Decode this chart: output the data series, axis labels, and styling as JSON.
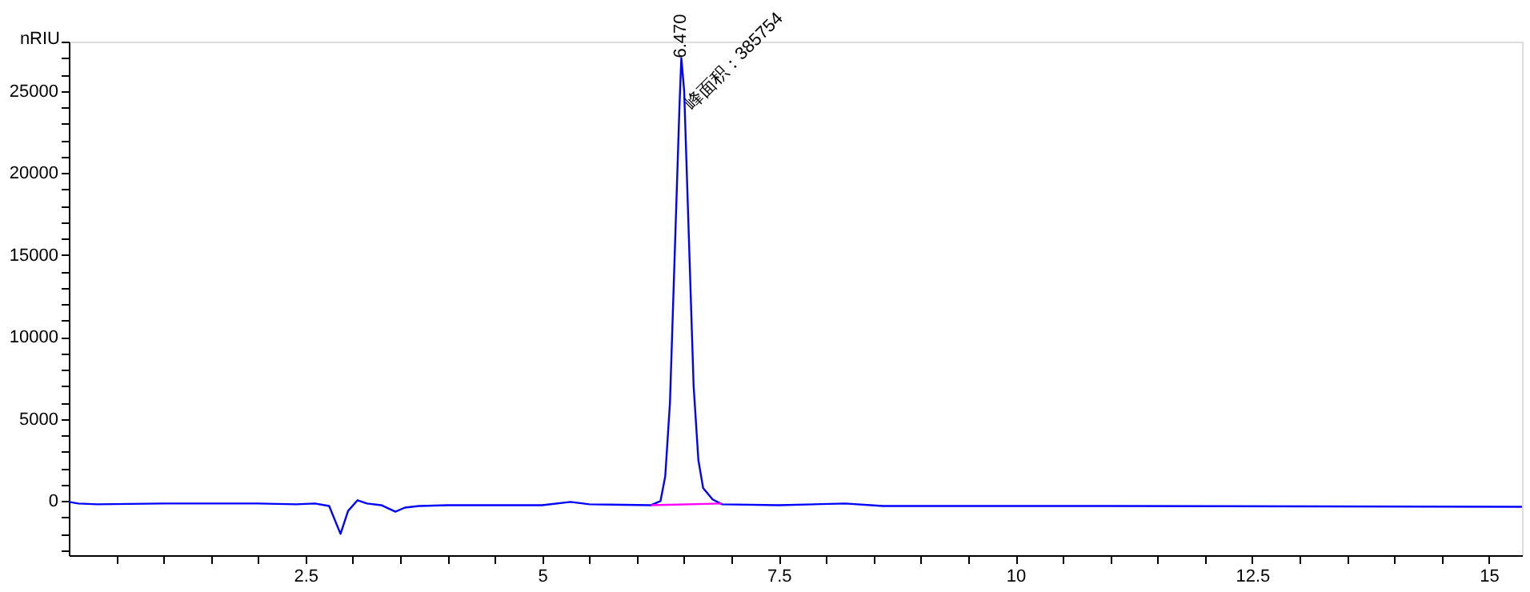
{
  "chart_data": {
    "type": "line",
    "ylabel": "nRIU",
    "series": [
      {
        "color": "#0000ff",
        "x": [
          0,
          0.1,
          0.3,
          1,
          2,
          2.4,
          2.6,
          2.75,
          2.87,
          2.95,
          3.05,
          3.15,
          3.3,
          3.45,
          3.55,
          3.7,
          4,
          5,
          5.3,
          5.5,
          6.15,
          6.25,
          6.3,
          6.35,
          6.4,
          6.45,
          6.47,
          6.5,
          6.55,
          6.6,
          6.65,
          6.7,
          6.8,
          6.9,
          7.5,
          8.2,
          8.6,
          11,
          15.35
        ],
        "values": [
          -50,
          -150,
          -200,
          -150,
          -150,
          -200,
          -150,
          -300,
          -2000,
          -600,
          50,
          -150,
          -250,
          -650,
          -400,
          -300,
          -250,
          -250,
          -50,
          -200,
          -250,
          0,
          1500,
          6000,
          15000,
          24000,
          27000,
          25000,
          16000,
          7000,
          2500,
          800,
          100,
          -200,
          -250,
          -150,
          -300,
          -300,
          -350
        ]
      },
      {
        "color": "#ff00ff",
        "x": [
          6.15,
          6.9
        ],
        "values": [
          -250,
          -150
        ]
      }
    ],
    "annotations": [
      {
        "text": "6.470",
        "x": 6.47,
        "y": 27000
      },
      {
        "text": "峰面积：385754",
        "x": 6.55,
        "y": 24000
      }
    ],
    "xlim": [
      0,
      15.35
    ],
    "ylim": [
      -3300,
      28000
    ],
    "xticks": [
      {
        "value": 0.5,
        "label": null
      },
      {
        "value": 1,
        "label": null
      },
      {
        "value": 1.5,
        "label": null
      },
      {
        "value": 2,
        "label": null
      },
      2.5,
      {
        "value": 3,
        "label": null
      },
      {
        "value": 3.5,
        "label": null
      },
      {
        "value": 4,
        "label": null
      },
      {
        "value": 4.5,
        "label": null
      },
      5,
      {
        "value": 5.5,
        "label": null
      },
      {
        "value": 6,
        "label": null
      },
      {
        "value": 6.5,
        "label": null
      },
      {
        "value": 7,
        "label": null
      },
      7.5,
      {
        "value": 8,
        "label": null
      },
      {
        "value": 8.5,
        "label": null
      },
      {
        "value": 9,
        "label": null
      },
      {
        "value": 9.5,
        "label": null
      },
      10,
      {
        "value": 10.5,
        "label": null
      },
      {
        "value": 11,
        "label": null
      },
      {
        "value": 11.5,
        "label": null
      },
      {
        "value": 12,
        "label": null
      },
      12.5,
      {
        "value": 13,
        "label": null
      },
      {
        "value": 13.5,
        "label": null
      },
      {
        "value": 14,
        "label": null
      },
      {
        "value": 14.5,
        "label": null
      },
      15
    ],
    "yticks": [
      {
        "value": -3000,
        "label": null
      },
      {
        "value": -2000,
        "label": null
      },
      {
        "value": -1000,
        "label": null
      },
      0,
      {
        "value": 1000,
        "label": null
      },
      {
        "value": 2000,
        "label": null
      },
      {
        "value": 3000,
        "label": null
      },
      {
        "value": 4000,
        "label": null
      },
      5000,
      {
        "value": 6000,
        "label": null
      },
      {
        "value": 7000,
        "label": null
      },
      {
        "value": 8000,
        "label": null
      },
      {
        "value": 9000,
        "label": null
      },
      10000,
      {
        "value": 11000,
        "label": null
      },
      {
        "value": 12000,
        "label": null
      },
      {
        "value": 13000,
        "label": null
      },
      {
        "value": 14000,
        "label": null
      },
      15000,
      {
        "value": 16000,
        "label": null
      },
      {
        "value": 17000,
        "label": null
      },
      {
        "value": 18000,
        "label": null
      },
      {
        "value": 19000,
        "label": null
      },
      20000,
      {
        "value": 21000,
        "label": null
      },
      {
        "value": 22000,
        "label": null
      },
      {
        "value": 23000,
        "label": null
      },
      {
        "value": 24000,
        "label": null
      },
      25000,
      {
        "value": 26000,
        "label": null
      },
      {
        "value": 27000,
        "label": null
      },
      {
        "value": 28000,
        "label": null
      }
    ],
    "grid": false,
    "marker": "none",
    "line_style": "solid"
  }
}
